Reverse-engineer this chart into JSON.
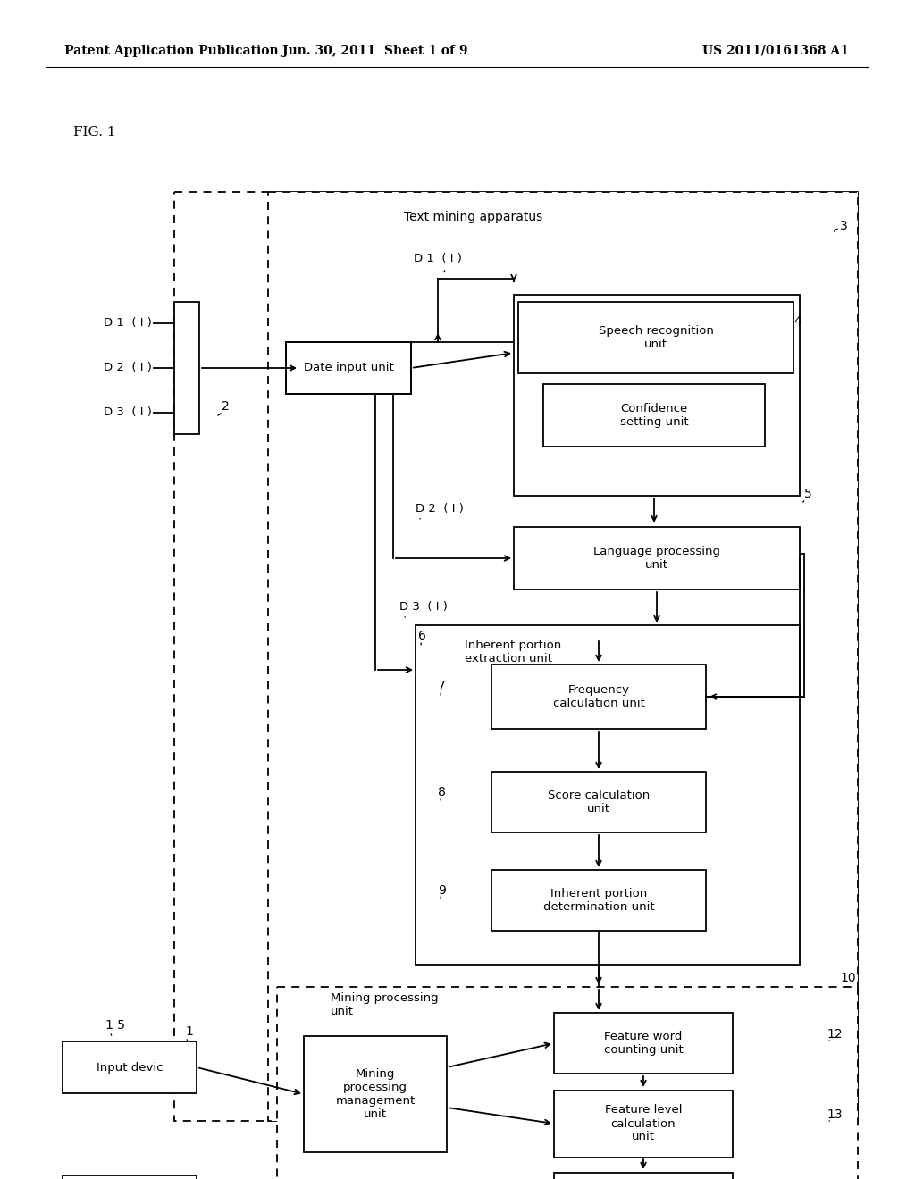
{
  "bg": "#ffffff",
  "header_left": "Patent Application Publication",
  "header_center": "Jun. 30, 2011  Sheet 1 of 9",
  "header_right": "US 2011/0161368 A1",
  "fig_label": "FIG. 1"
}
